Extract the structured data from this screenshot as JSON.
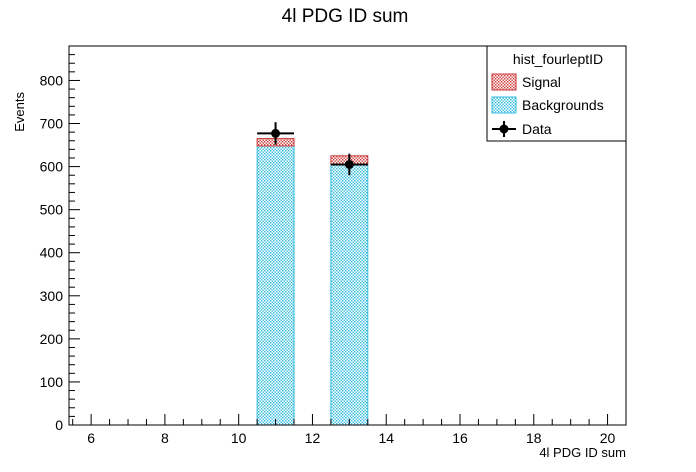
{
  "chart_data": {
    "type": "bar",
    "title": "4l PDG ID sum",
    "xlabel": "4l PDG ID sum",
    "ylabel": "Events",
    "xlim": [
      5.4,
      20.5
    ],
    "ylim": [
      0,
      880
    ],
    "x_ticks": [
      6,
      8,
      10,
      12,
      14,
      16,
      18,
      20
    ],
    "y_ticks": [
      0,
      100,
      200,
      300,
      400,
      500,
      600,
      700,
      800
    ],
    "bins": [
      {
        "x_low": 10.5,
        "x_high": 11.5,
        "background": 648,
        "signal": 17
      },
      {
        "x_low": 12.5,
        "x_high": 13.5,
        "background": 605,
        "signal": 20
      }
    ],
    "data_points": [
      {
        "x": 11,
        "y": 677,
        "x_err": 0.5,
        "y_err": 26
      },
      {
        "x": 13,
        "y": 605,
        "x_err": 0.5,
        "y_err": 25
      }
    ],
    "legend": {
      "title": "hist_fourleptID",
      "position": "top-right",
      "entries": [
        {
          "label": "Signal",
          "style": "signal"
        },
        {
          "label": "Backgrounds",
          "style": "background"
        },
        {
          "label": "Data",
          "style": "data"
        }
      ]
    },
    "colors": {
      "signal_line": "#cc3333",
      "signal_fill": "#e8a0a0",
      "background_line": "#33bbdd",
      "background_fill": "#b8e8f4",
      "data": "#000000"
    }
  }
}
